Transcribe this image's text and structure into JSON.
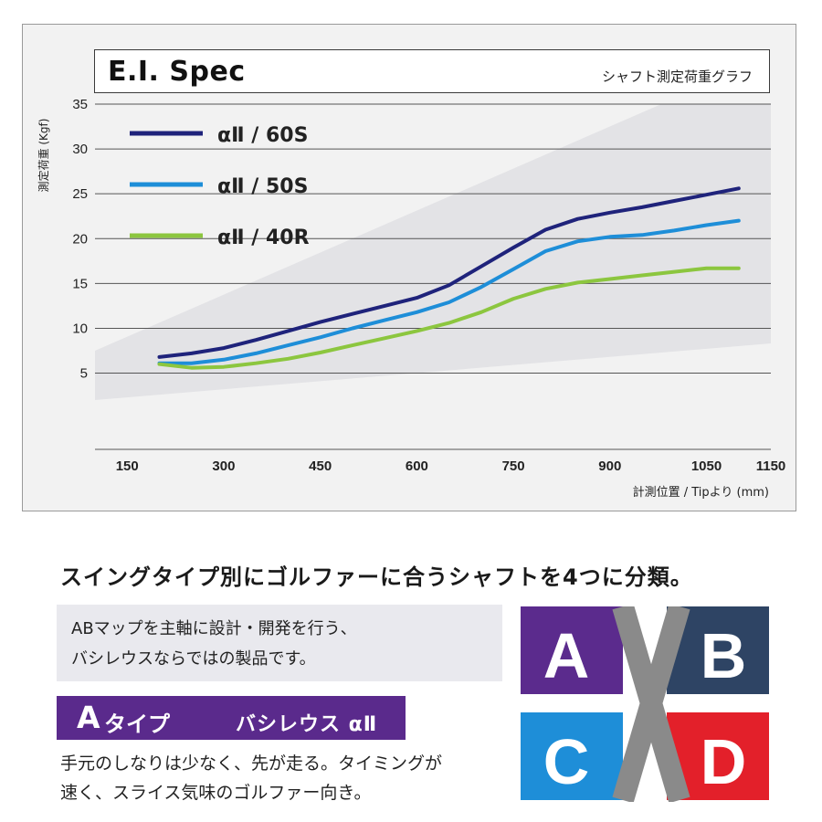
{
  "chart_data": {
    "type": "line",
    "title": "E.I. Spec",
    "subtitle": "シャフト測定荷重グラフ",
    "ylabel": "測定荷重 (Kgf)",
    "xlabel": "計測位置 / Tipより (mm)",
    "xlim": [
      100,
      1150
    ],
    "ylim": [
      -3.5,
      35
    ],
    "x_ticks": [
      150,
      300,
      450,
      600,
      750,
      900,
      1050,
      1150
    ],
    "y_ticks": [
      5,
      10,
      15,
      20,
      25,
      30,
      35
    ],
    "grid": true,
    "legend_position": "top-left",
    "series": [
      {
        "name": "αⅡ / 60S",
        "color": "#1f237b",
        "x": [
          200,
          250,
          300,
          350,
          400,
          450,
          500,
          550,
          600,
          650,
          700,
          750,
          800,
          850,
          900,
          950,
          1000,
          1050,
          1100
        ],
        "y": [
          6.8,
          7.2,
          7.8,
          8.7,
          9.7,
          10.7,
          11.6,
          12.5,
          13.4,
          14.8,
          16.9,
          19.0,
          21.0,
          22.2,
          22.9,
          23.5,
          24.2,
          24.9,
          25.6
        ]
      },
      {
        "name": "αⅡ / 50S",
        "color": "#1e8ed8",
        "x": [
          200,
          250,
          300,
          350,
          400,
          450,
          500,
          550,
          600,
          650,
          700,
          750,
          800,
          850,
          900,
          950,
          1000,
          1050,
          1100
        ],
        "y": [
          6.1,
          6.1,
          6.5,
          7.2,
          8.1,
          9.0,
          10.0,
          10.9,
          11.8,
          12.9,
          14.6,
          16.6,
          18.6,
          19.7,
          20.2,
          20.4,
          20.9,
          21.5,
          22.0
        ]
      },
      {
        "name": "αⅡ / 40R",
        "color": "#8cc63f",
        "x": [
          200,
          250,
          300,
          350,
          400,
          450,
          500,
          550,
          600,
          650,
          700,
          750,
          800,
          850,
          900,
          950,
          1000,
          1050,
          1100
        ],
        "y": [
          6.0,
          5.6,
          5.7,
          6.1,
          6.6,
          7.3,
          8.1,
          8.9,
          9.7,
          10.6,
          11.8,
          13.3,
          14.4,
          15.1,
          15.5,
          15.9,
          16.3,
          16.7,
          16.7
        ]
      }
    ]
  },
  "page": {
    "heading": "スイングタイプ別にゴルファーに合うシャフトを4つに分類。",
    "note_lines": [
      "ABマップを主軸に設計・開発を行う、",
      "バシレウスならではの製品です。"
    ],
    "type_badge": {
      "letter": "A",
      "label": "タイプ",
      "name": "バシレウス αⅡ"
    },
    "description_lines": [
      "手元のしなりは少なく、先が走る。タイミングが",
      "速く、スライス気味のゴルファー向き。"
    ]
  },
  "quadrant_map": {
    "cells": [
      {
        "letter": "A",
        "color": "#5b2b8d"
      },
      {
        "letter": "B",
        "color": "#2e4464"
      },
      {
        "letter": "C",
        "color": "#1e8ed8"
      },
      {
        "letter": "D",
        "color": "#e3202a"
      }
    ],
    "cross_color": "#8a8a8a"
  }
}
